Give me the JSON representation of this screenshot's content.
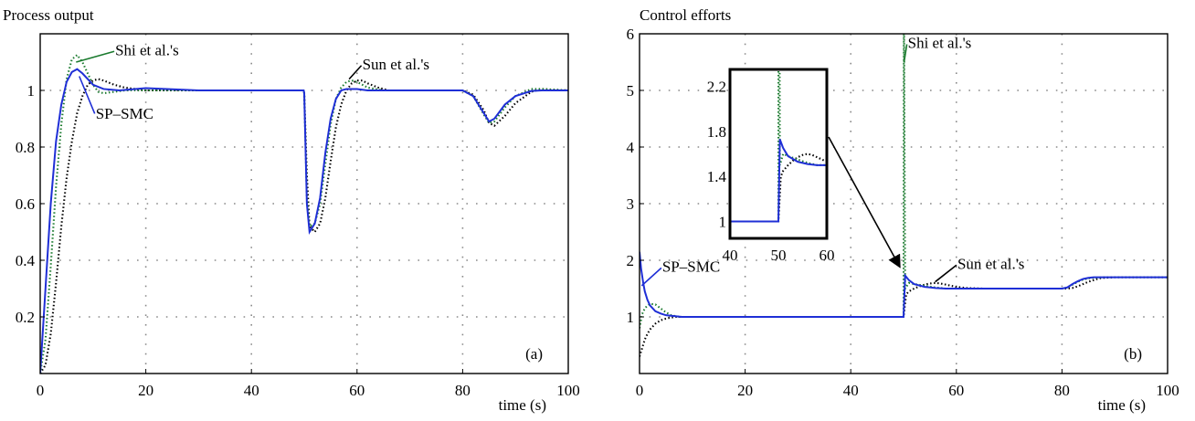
{
  "chart_data": [
    {
      "type": "line",
      "title": "Process output",
      "xlabel": "time (s)",
      "ylabel": "",
      "xlim": [
        0,
        100
      ],
      "ylim": [
        0,
        1.2
      ],
      "xticks": [
        0,
        20,
        40,
        60,
        80,
        100
      ],
      "yticks": [
        0.2,
        0.4,
        0.6,
        0.8,
        1
      ],
      "grid": true,
      "panel_label": "(a)",
      "series": [
        {
          "name": "SP–SMC",
          "style": "solid",
          "color": "#1f2fd6",
          "x": [
            0,
            1,
            2,
            3,
            4,
            5,
            6,
            7,
            8,
            9,
            10,
            12,
            15,
            20,
            30,
            40,
            49.9,
            50,
            50.5,
            51,
            52,
            53,
            54,
            55,
            56,
            57,
            58,
            60,
            62,
            65,
            70,
            80,
            82,
            84,
            85,
            86,
            88,
            90,
            93,
            95,
            100
          ],
          "y": [
            0,
            0.3,
            0.6,
            0.82,
            0.95,
            1.03,
            1.065,
            1.075,
            1.06,
            1.04,
            1.02,
            1.005,
            1.0,
            1.008,
            1.0,
            1.0,
            1.0,
            0.99,
            0.6,
            0.5,
            0.53,
            0.62,
            0.78,
            0.9,
            0.97,
            1.0,
            1.005,
            1.005,
            1.0,
            1.0,
            1.0,
            1.0,
            0.98,
            0.92,
            0.89,
            0.9,
            0.95,
            0.98,
            0.998,
            1.0,
            1.0
          ]
        },
        {
          "name": "Shi et al.'s",
          "style": "dotted",
          "color": "#1a7a2e",
          "x": [
            0,
            1,
            2,
            3,
            4,
            5,
            6,
            7,
            8,
            9,
            10,
            11,
            12,
            14,
            16,
            20,
            30,
            40,
            49.9,
            50,
            50.5,
            51,
            52,
            53,
            54,
            55,
            56,
            57,
            58,
            59,
            60,
            62,
            65,
            70,
            80,
            82,
            84,
            85,
            86,
            88,
            90,
            93,
            95,
            100
          ],
          "y": [
            0,
            0.12,
            0.38,
            0.66,
            0.88,
            1.04,
            1.11,
            1.125,
            1.1,
            1.06,
            1.02,
            0.995,
            0.99,
            0.995,
            1.0,
            1.0,
            1.0,
            1.0,
            1.0,
            0.99,
            0.62,
            0.52,
            0.53,
            0.6,
            0.74,
            0.88,
            0.97,
            1.01,
            1.03,
            1.035,
            1.03,
            1.01,
            1.0,
            1.0,
            1.0,
            0.98,
            0.915,
            0.885,
            0.89,
            0.94,
            0.98,
            1.005,
            1.005,
            1.0
          ]
        },
        {
          "name": "Sun et al.'s",
          "style": "dotted",
          "color": "#000000",
          "x": [
            0,
            1,
            2,
            3,
            4,
            5,
            6,
            7,
            8,
            9,
            10,
            11,
            12,
            14,
            16,
            20,
            30,
            40,
            49.9,
            50,
            50.5,
            51,
            52,
            53,
            54,
            55,
            56,
            57,
            58,
            59,
            60,
            61,
            62,
            64,
            66,
            70,
            80,
            82,
            84,
            85,
            86,
            88,
            90,
            93,
            95,
            100
          ],
          "y": [
            0,
            0.03,
            0.14,
            0.32,
            0.52,
            0.69,
            0.82,
            0.92,
            0.98,
            1.02,
            1.035,
            1.04,
            1.035,
            1.02,
            1.01,
            1.0,
            1.0,
            1.0,
            1.0,
            0.99,
            0.7,
            0.52,
            0.5,
            0.53,
            0.62,
            0.75,
            0.87,
            0.95,
            1.0,
            1.025,
            1.035,
            1.035,
            1.025,
            1.01,
            1.0,
            1.0,
            1.0,
            0.985,
            0.93,
            0.885,
            0.875,
            0.91,
            0.955,
            0.995,
            1.005,
            1.0
          ]
        }
      ],
      "annotations": [
        {
          "text": "Shi et al.'s",
          "color": "#1a7a2e",
          "x": 14.2,
          "y": 1.125
        },
        {
          "text": "Sun et al.'s",
          "color": "#000000",
          "x": 61,
          "y": 1.075
        },
        {
          "text": "SP–SMC",
          "color": "#1f2fd6",
          "x": 10.5,
          "y": 0.9
        }
      ]
    },
    {
      "type": "line",
      "title": "Control efforts",
      "xlabel": "time (s)",
      "ylabel": "",
      "xlim": [
        0,
        100
      ],
      "ylim": [
        0,
        6
      ],
      "xticks": [
        0,
        20,
        40,
        60,
        80,
        100
      ],
      "yticks": [
        1,
        2,
        3,
        4,
        5,
        6
      ],
      "grid": true,
      "panel_label": "(b)",
      "series": [
        {
          "name": "SP–SMC",
          "style": "solid",
          "color": "#1f2fd6",
          "x": [
            0,
            0.3,
            0.7,
            1,
            1.5,
            2,
            3,
            4,
            5,
            6,
            7,
            8,
            10,
            15,
            20,
            30,
            40,
            49.9,
            50,
            50.3,
            51,
            52,
            54,
            56,
            58,
            60,
            65,
            70,
            80,
            81,
            82,
            83,
            84,
            85,
            86,
            88,
            90,
            95,
            100
          ],
          "y": [
            2.15,
            1.85,
            1.6,
            1.45,
            1.3,
            1.2,
            1.1,
            1.06,
            1.03,
            1.02,
            1.01,
            1.0,
            1.0,
            1.0,
            1.0,
            1.0,
            1.0,
            1.0,
            1.0,
            1.73,
            1.65,
            1.58,
            1.53,
            1.51,
            1.5,
            1.5,
            1.5,
            1.5,
            1.5,
            1.52,
            1.58,
            1.63,
            1.67,
            1.69,
            1.7,
            1.7,
            1.7,
            1.7,
            1.7
          ]
        },
        {
          "name": "Shi et al.'s",
          "style": "dotted",
          "color": "#1a7a2e",
          "x": [
            0,
            0.5,
            1,
            1.5,
            2,
            3,
            4,
            5,
            6,
            7,
            8,
            10,
            15,
            20,
            30,
            40,
            49.9,
            50,
            50.05,
            50.1,
            50.3,
            51,
            52,
            54,
            56,
            58,
            60,
            65,
            70,
            80,
            81,
            82,
            83,
            84,
            85,
            86,
            88,
            90,
            95,
            100
          ],
          "y": [
            0.8,
            1.05,
            1.15,
            1.2,
            1.23,
            1.22,
            1.15,
            1.08,
            1.03,
            1.01,
            1.0,
            1.0,
            1.0,
            1.0,
            1.0,
            1.0,
            1.0,
            1.0,
            6.0,
            6.0,
            1.5,
            1.6,
            1.58,
            1.55,
            1.52,
            1.5,
            1.5,
            1.5,
            1.5,
            1.5,
            1.52,
            1.57,
            1.62,
            1.66,
            1.68,
            1.69,
            1.7,
            1.7,
            1.7,
            1.7
          ]
        },
        {
          "name": "Sun et al.'s",
          "style": "dotted",
          "color": "#000000",
          "x": [
            0,
            0.5,
            1,
            1.5,
            2,
            3,
            4,
            5,
            6,
            7,
            8,
            10,
            12,
            15,
            20,
            30,
            40,
            49.9,
            50,
            50.5,
            51,
            52,
            53,
            54,
            55,
            56,
            57,
            58,
            60,
            62,
            65,
            70,
            80,
            81,
            82,
            83,
            84,
            85,
            86,
            87,
            88,
            90,
            95,
            100
          ],
          "y": [
            0.3,
            0.45,
            0.6,
            0.7,
            0.78,
            0.88,
            0.94,
            0.97,
            0.99,
            1.0,
            1.0,
            1.0,
            1.0,
            1.0,
            1.0,
            1.0,
            1.0,
            1.0,
            1.0,
            1.4,
            1.45,
            1.5,
            1.54,
            1.57,
            1.59,
            1.6,
            1.59,
            1.57,
            1.53,
            1.51,
            1.5,
            1.5,
            1.5,
            1.5,
            1.51,
            1.54,
            1.58,
            1.62,
            1.65,
            1.68,
            1.69,
            1.7,
            1.7,
            1.7
          ]
        }
      ],
      "annotations": [
        {
          "text": "Shi et al.'s",
          "color": "#1a7a2e",
          "x": 50.8,
          "y": 5.75
        },
        {
          "text": "Sun et al.'s",
          "color": "#000000",
          "x": 60.2,
          "y": 1.85
        },
        {
          "text": "SP–SMC",
          "color": "#1f2fd6",
          "x": 4.3,
          "y": 1.8
        }
      ],
      "inset": {
        "xlim": [
          40,
          60
        ],
        "ylim": [
          0.85,
          2.35
        ],
        "xticks": [
          40,
          50,
          60
        ],
        "yticks": [
          1,
          1.4,
          1.8,
          2.2
        ],
        "ytick_labels": [
          "1",
          "1.4",
          "1.8",
          "2.2"
        ],
        "arrow_to": {
          "x": 50,
          "y": 1.75
        }
      }
    }
  ]
}
